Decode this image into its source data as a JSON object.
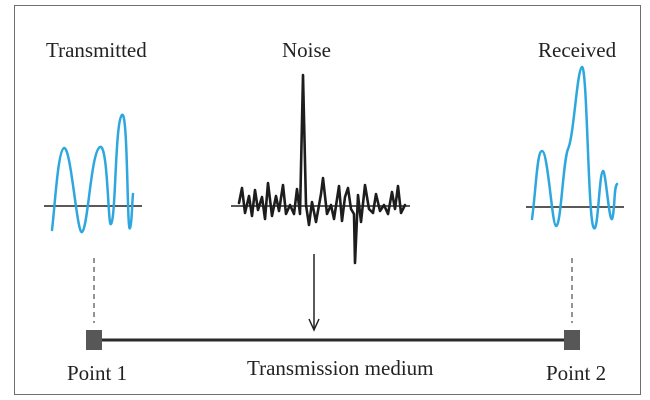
{
  "labels": {
    "transmitted": "Transmitted",
    "noise": "Noise",
    "received": "Received",
    "point1": "Point 1",
    "point2": "Point 2",
    "medium": "Transmission medium"
  },
  "colors": {
    "signal": "#2ea7df",
    "noise": "#1d1d1d",
    "point": "#575757"
  },
  "icons": {
    "arrow": "down-arrow-icon"
  }
}
